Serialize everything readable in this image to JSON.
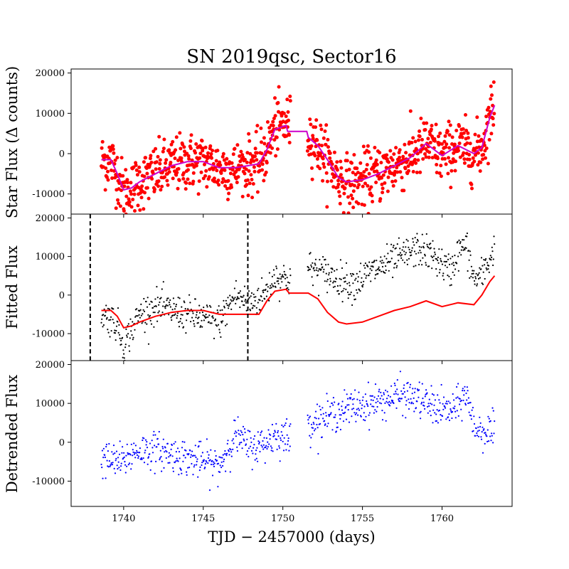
{
  "figure": {
    "title": "SN 2019qsc, Sector16",
    "xlabel": "TJD − 2457000 (days)"
  },
  "chart_data": [
    {
      "type": "scatter",
      "panel": "star-flux",
      "ylabel": "Star Flux (Δ counts)",
      "xlim": [
        1736.7,
        1764.4
      ],
      "ylim": [
        -15000,
        21000
      ],
      "yticks": [
        -10000,
        0,
        10000,
        20000
      ],
      "xticks": [
        1740,
        1745,
        1750,
        1755,
        1760
      ],
      "show_xtick_labels": false,
      "grid": false,
      "colors": {
        "points": "#ff0000",
        "line": "#cc00cc"
      },
      "series": [
        {
          "kind": "points",
          "color": "#ff0000",
          "noise": 3500,
          "step": 0.025,
          "x": [
            1738.6,
            1739.2,
            1739.6,
            1740.0,
            1740.5,
            1741.0,
            1742.0,
            1743.0,
            1744.0,
            1745.0,
            1746.0,
            1747.0,
            1747.8,
            1748.5,
            1749.0,
            1749.5,
            1750.2,
            1751.6,
            1752.2,
            1752.8,
            1753.5,
            1754.0,
            1755.0,
            1756.0,
            1757.0,
            1758.0,
            1759.0,
            1760.0,
            1761.0,
            1762.0,
            1762.5,
            1763.0,
            1763.3
          ],
          "y": [
            -2000,
            -1500,
            -5000,
            -9500,
            -9000,
            -7000,
            -5000,
            -3000,
            -2000,
            -2000,
            -3500,
            -4000,
            -3000,
            -2500,
            1000,
            6500,
            7500,
            5000,
            2000,
            -1500,
            -6000,
            -7500,
            -6500,
            -5000,
            -3000,
            -1000,
            2500,
            -500,
            2000,
            0,
            1500,
            9000,
            13000
          ]
        },
        {
          "kind": "line",
          "color": "#cc00cc",
          "x": [
            1738.6,
            1739.2,
            1739.6,
            1740.0,
            1740.5,
            1741.0,
            1742.0,
            1743.0,
            1744.0,
            1745.0,
            1746.0,
            1747.0,
            1747.8,
            1748.5,
            1749.0,
            1749.5,
            1750.2,
            1750.3,
            1751.5,
            1751.6,
            1752.2,
            1752.8,
            1753.5,
            1754.0,
            1755.0,
            1756.0,
            1757.0,
            1758.0,
            1759.0,
            1760.0,
            1761.0,
            1762.0,
            1762.5,
            1763.0,
            1763.3
          ],
          "y": [
            -1500,
            -1500,
            -5000,
            -9000,
            -8500,
            -7000,
            -5000,
            -3000,
            -2000,
            -2000,
            -3500,
            -3500,
            -3000,
            -2500,
            1000,
            6000,
            7000,
            5500,
            5500,
            4000,
            2000,
            -1500,
            -6000,
            -7000,
            -6500,
            -5000,
            -3000,
            -1000,
            2500,
            -500,
            2000,
            0,
            1500,
            9000,
            12000
          ]
        }
      ]
    },
    {
      "type": "scatter",
      "panel": "fitted-flux",
      "ylabel": "Fitted Flux",
      "xlim": [
        1736.7,
        1764.4
      ],
      "ylim": [
        -17000,
        21000
      ],
      "yticks": [
        -10000,
        0,
        10000,
        20000
      ],
      "xticks": [
        1740,
        1745,
        1750,
        1755,
        1760
      ],
      "show_xtick_labels": false,
      "grid": false,
      "colors": {
        "points": "#000000",
        "line": "#ff0000",
        "vlines": "#000000"
      },
      "vlines": [
        1737.9,
        1747.8
      ],
      "series": [
        {
          "kind": "points",
          "color": "#000000",
          "noise": 2200,
          "step": 0.03,
          "x": [
            1738.6,
            1739.2,
            1739.6,
            1740.0,
            1740.5,
            1741.0,
            1742.0,
            1743.0,
            1744.0,
            1745.0,
            1746.0,
            1747.0,
            1747.8,
            1748.5,
            1749.0,
            1749.5,
            1750.4,
            1751.6,
            1752.5,
            1753.5,
            1754.5,
            1755.5,
            1756.5,
            1757.5,
            1758.5,
            1759.5,
            1760.5,
            1761.0,
            1761.5,
            1762.0,
            1762.5,
            1763.3
          ],
          "y": [
            -5000,
            -6000,
            -8000,
            -13000,
            -9000,
            -5000,
            -3000,
            -4000,
            -5000,
            -6000,
            -7000,
            0,
            -2000,
            -1000,
            1000,
            5000,
            4000,
            7000,
            6000,
            4000,
            3000,
            6000,
            8000,
            10000,
            12000,
            10000,
            6000,
            11000,
            13000,
            4000,
            5000,
            12000
          ]
        },
        {
          "kind": "line",
          "color": "#ff0000",
          "x": [
            1738.6,
            1739.2,
            1739.6,
            1740.0,
            1740.5,
            1741.0,
            1742.0,
            1743.0,
            1744.0,
            1745.0,
            1746.0,
            1747.0,
            1747.8,
            1748.5,
            1749.0,
            1749.5,
            1750.2,
            1750.4,
            1751.6,
            1752.2,
            1752.8,
            1753.5,
            1754.0,
            1755.0,
            1756.0,
            1757.0,
            1758.0,
            1759.0,
            1760.0,
            1761.0,
            1762.0,
            1762.5,
            1763.0,
            1763.3
          ],
          "y": [
            -4000,
            -4000,
            -5500,
            -8500,
            -8000,
            -7000,
            -5500,
            -4500,
            -4000,
            -4000,
            -5000,
            -5000,
            -5000,
            -5000,
            -1500,
            1000,
            1500,
            500,
            500,
            -1000,
            -4500,
            -7000,
            -7500,
            -7000,
            -5500,
            -4000,
            -3000,
            -1500,
            -3000,
            -2000,
            -2500,
            0,
            3500,
            5000
          ]
        }
      ]
    },
    {
      "type": "scatter",
      "panel": "detrended-flux",
      "ylabel": "Detrended Flux",
      "xlim": [
        1736.7,
        1764.4
      ],
      "ylim": [
        -16500,
        21000
      ],
      "yticks": [
        -10000,
        0,
        10000,
        20000
      ],
      "xticks": [
        1740,
        1745,
        1750,
        1755,
        1760
      ],
      "show_xtick_labels": true,
      "grid": false,
      "colors": {
        "points": "#0000ff"
      },
      "series": [
        {
          "kind": "points",
          "color": "#0000ff",
          "noise": 2300,
          "step": 0.03,
          "x": [
            1738.6,
            1739.2,
            1739.6,
            1740.0,
            1740.5,
            1741.0,
            1742.0,
            1743.0,
            1744.0,
            1745.0,
            1746.0,
            1747.0,
            1747.8,
            1748.5,
            1749.0,
            1749.5,
            1750.4,
            1751.6,
            1752.5,
            1753.5,
            1754.5,
            1755.5,
            1756.5,
            1757.5,
            1758.5,
            1759.5,
            1760.5,
            1761.0,
            1761.5,
            1762.0,
            1762.5,
            1763.3
          ],
          "y": [
            -4000,
            -5000,
            -5000,
            -5000,
            -3000,
            -2000,
            -2000,
            -3000,
            -4000,
            -5000,
            -6000,
            2000,
            -1000,
            -1000,
            0,
            2000,
            1000,
            5000,
            6000,
            8000,
            9000,
            10000,
            11000,
            12000,
            11000,
            9000,
            8000,
            9000,
            13000,
            4000,
            3000,
            2500
          ]
        }
      ]
    }
  ]
}
